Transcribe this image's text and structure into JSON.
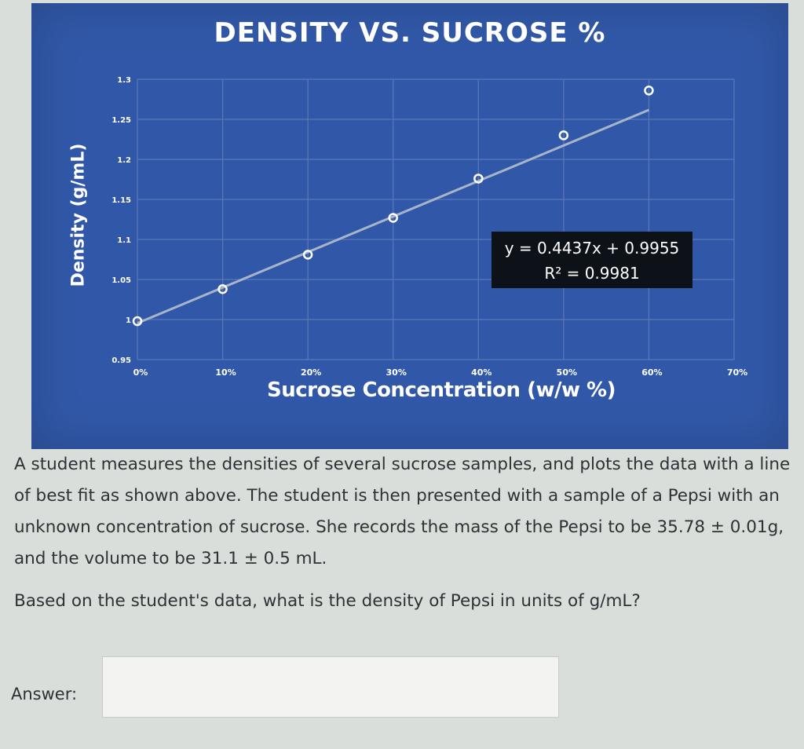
{
  "chart_data": {
    "type": "scatter",
    "title": "DENSITY VS. SUCROSE %",
    "xlabel": "Sucrose Concentration (w/w %)",
    "ylabel": "Density (g/mL)",
    "xlim": [
      0,
      0.7
    ],
    "ylim": [
      0.95,
      1.3
    ],
    "x_ticks": [
      "0%",
      "10%",
      "20%",
      "30%",
      "40%",
      "50%",
      "60%",
      "70%"
    ],
    "y_ticks": [
      "0.95",
      "1",
      "1.05",
      "1.1",
      "1.15",
      "1.2",
      "1.25",
      "1.3"
    ],
    "grid": true,
    "series": [
      {
        "x": [
          0,
          0.1,
          0.2,
          0.3,
          0.4,
          0.5,
          0.6
        ],
        "y": [
          0.998,
          1.038,
          1.081,
          1.127,
          1.176,
          1.23,
          1.286
        ]
      }
    ],
    "trendline": {
      "slope": 0.4437,
      "intercept": 0.9955,
      "equation": "y = 0.4437x + 0.9955",
      "r_squared": "R² = 0.9981"
    },
    "colors": {
      "background": "#3158a8",
      "marker": "#ffffff",
      "line": "#a9b4c9",
      "grid": "#5a78b8"
    }
  },
  "question": {
    "paragraph1": "A student measures the densities of several sucrose samples, and plots the data with a line of best fit as shown above. The student is then presented with a sample of a Pepsi with an unknown concentration of sucrose. She records the mass of the Pepsi to be 35.78 ± 0.01g, and the volume to be 31.1 ± 0.5 mL.",
    "paragraph2": "Based on the student's data, what is the density of Pepsi in units of g/mL?"
  },
  "answer": {
    "label": "Answer:",
    "value": "",
    "placeholder": ""
  }
}
